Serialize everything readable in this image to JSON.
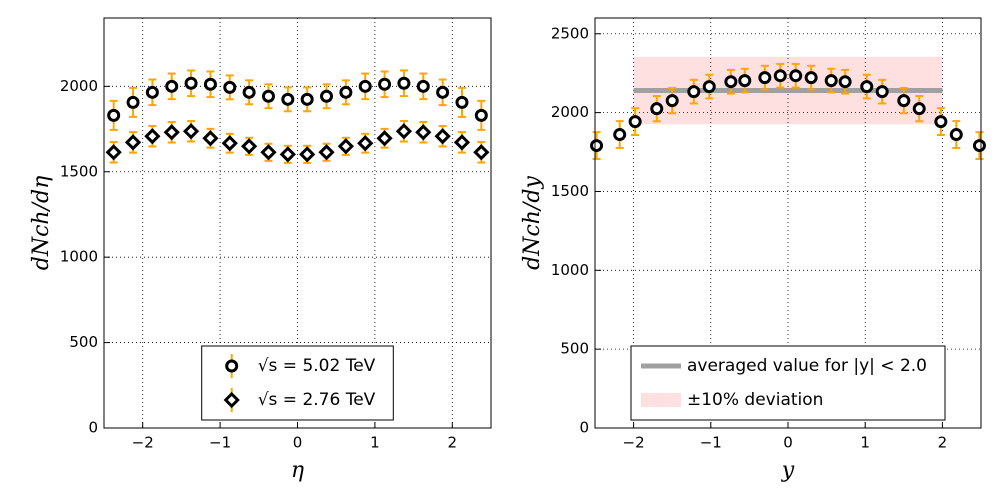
{
  "chart_data": [
    {
      "type": "errorbar",
      "xlabel": "dNch/dη",
      "ylabel_unused": null,
      "x_label": "η",
      "y_label": "dNch/dη",
      "xlim": [
        -2.5,
        2.5
      ],
      "ylim": [
        0,
        2400
      ],
      "xticks": [
        {
          "value": -2,
          "label": "−2"
        },
        {
          "value": -1,
          "label": "−1"
        },
        0,
        1,
        2
      ],
      "yticks": [
        0,
        500,
        1000,
        1500,
        2000
      ],
      "grid": true,
      "legend_loc": "lower center",
      "series": [
        {
          "name": "√s = 5.02 TeV",
          "marker": "circle",
          "color": "#000000",
          "ecolor": "#ffa500",
          "x": [
            -2.375,
            -2.125,
            -1.875,
            -1.625,
            -1.375,
            -1.125,
            -0.875,
            -0.625,
            -0.375,
            -0.125,
            0.125,
            0.375,
            0.625,
            0.875,
            1.125,
            1.375,
            1.625,
            1.875,
            2.125,
            2.375
          ],
          "values": [
            1830,
            1906,
            1965,
            2000,
            2018,
            2012,
            1994,
            1965,
            1942,
            1924,
            1924,
            1942,
            1965,
            2000,
            2012,
            2018,
            2000,
            1965,
            1906,
            1830
          ],
          "errors": [
            85,
            85,
            75,
            75,
            75,
            75,
            70,
            70,
            70,
            70,
            70,
            70,
            70,
            75,
            75,
            75,
            75,
            75,
            85,
            85
          ]
        },
        {
          "name": "√s = 2.76 TeV",
          "marker": "diamond",
          "color": "#000000",
          "ecolor": "#ffa500",
          "x": [
            -2.375,
            -2.125,
            -1.875,
            -1.625,
            -1.375,
            -1.125,
            -0.875,
            -0.625,
            -0.375,
            -0.125,
            0.125,
            0.375,
            0.625,
            0.875,
            1.125,
            1.375,
            1.625,
            1.875,
            2.125,
            2.375
          ],
          "values": [
            1614,
            1672,
            1708,
            1731,
            1737,
            1696,
            1667,
            1649,
            1614,
            1602,
            1602,
            1614,
            1649,
            1667,
            1696,
            1737,
            1731,
            1708,
            1672,
            1614
          ],
          "errors": [
            60,
            60,
            60,
            60,
            60,
            55,
            55,
            50,
            50,
            50,
            50,
            50,
            50,
            55,
            55,
            60,
            60,
            60,
            60,
            60
          ]
        }
      ]
    },
    {
      "type": "errorbar",
      "x_label": "y",
      "y_label": "dNch/dy",
      "xlim": [
        -2.5,
        2.5
      ],
      "ylim": [
        0,
        2600
      ],
      "xticks": [
        {
          "value": -2,
          "label": "−2"
        },
        {
          "value": -1,
          "label": "−1"
        },
        0,
        1,
        2
      ],
      "yticks": [
        0,
        500,
        1000,
        1500,
        2000,
        2500
      ],
      "grid": true,
      "legend_loc": "lower center",
      "series": [
        {
          "marker": "circle",
          "color": "#000000",
          "ecolor": "#ffa500",
          "x": [
            -2.48,
            -2.18,
            -1.98,
            -1.7,
            -1.5,
            -1.22,
            -1.02,
            -0.74,
            -0.56,
            -0.3,
            -0.1,
            0.1,
            0.3,
            0.56,
            0.74,
            1.02,
            1.22,
            1.5,
            1.7,
            1.98,
            2.18,
            2.48
          ],
          "values": [
            1791,
            1861,
            1943,
            2025,
            2076,
            2133,
            2165,
            2196,
            2203,
            2222,
            2234,
            2234,
            2222,
            2203,
            2196,
            2165,
            2133,
            2076,
            2025,
            1943,
            1861,
            1791
          ],
          "errors": [
            85,
            85,
            85,
            80,
            80,
            75,
            75,
            75,
            75,
            75,
            75,
            75,
            75,
            75,
            75,
            75,
            75,
            80,
            80,
            85,
            85,
            85
          ]
        }
      ],
      "reference_line": {
        "label": "averaged value for |y| < 2.0",
        "value": 2140,
        "x_range": [
          -2,
          2
        ],
        "color": "#a0a0a0"
      },
      "band": {
        "label": "±10% deviation",
        "range": [
          1926,
          2354
        ],
        "x_range": [
          -2,
          2
        ],
        "color": "#ffcccc"
      }
    }
  ]
}
